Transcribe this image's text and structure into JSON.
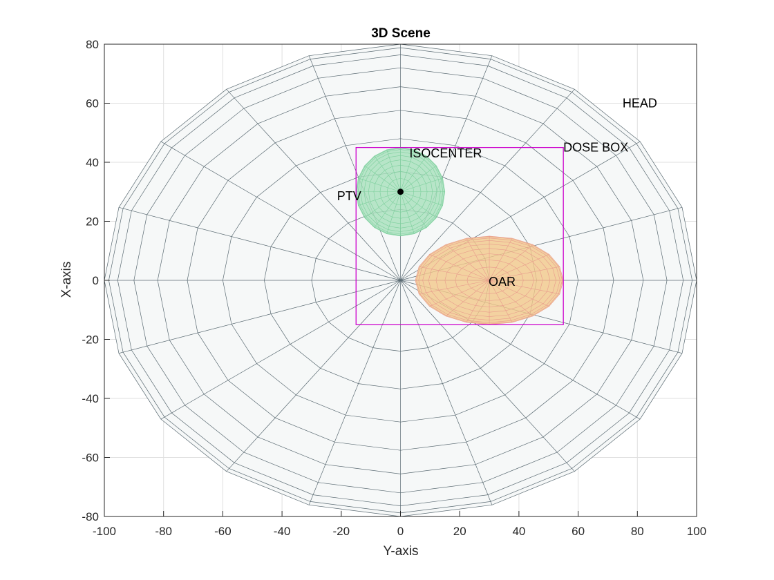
{
  "chart_data": {
    "type": "scatter",
    "title": "3D Scene",
    "xlabel": "Y-axis",
    "ylabel": "X-axis",
    "xlim": [
      -100,
      100
    ],
    "ylim": [
      -80,
      80
    ],
    "xticks": [
      -100,
      -80,
      -60,
      -40,
      -20,
      0,
      20,
      40,
      60,
      80,
      100
    ],
    "yticks": [
      -80,
      -60,
      -40,
      -20,
      0,
      20,
      40,
      60,
      80
    ],
    "grid": true,
    "colors": {
      "head_face": "#f6f8f8",
      "head_edge": "#5a6a72",
      "ptv_face": "#a8e0bc",
      "ptv_edge": "#7ccf9c",
      "oar_face": "#f2c88a",
      "oar_edge": "#e89a8c",
      "dose_box": "#cc00cc",
      "isocenter": "#000000"
    },
    "objects": {
      "head": {
        "label": "HEAD",
        "center": [
          0,
          0
        ],
        "radius_y": 100,
        "radius_x": 80,
        "label_at": [
          75,
          60
        ]
      },
      "ptv": {
        "label": "PTV",
        "center": [
          0,
          30
        ],
        "radius_y": 15,
        "radius_x": 15,
        "label_at": [
          -20,
          29
        ]
      },
      "oar": {
        "label": "OAR",
        "center": [
          30,
          0
        ],
        "radius_y": 25,
        "radius_x": 15,
        "label_at": [
          30,
          0
        ]
      },
      "dose_box": {
        "label": "DOSE BOX",
        "y_range": [
          -15,
          55
        ],
        "x_range": [
          -15,
          45
        ],
        "label_at": [
          55,
          45
        ]
      },
      "isocenter": {
        "label": "ISOCENTER",
        "point": [
          0,
          30
        ],
        "label_at": [
          3,
          43
        ]
      }
    }
  }
}
